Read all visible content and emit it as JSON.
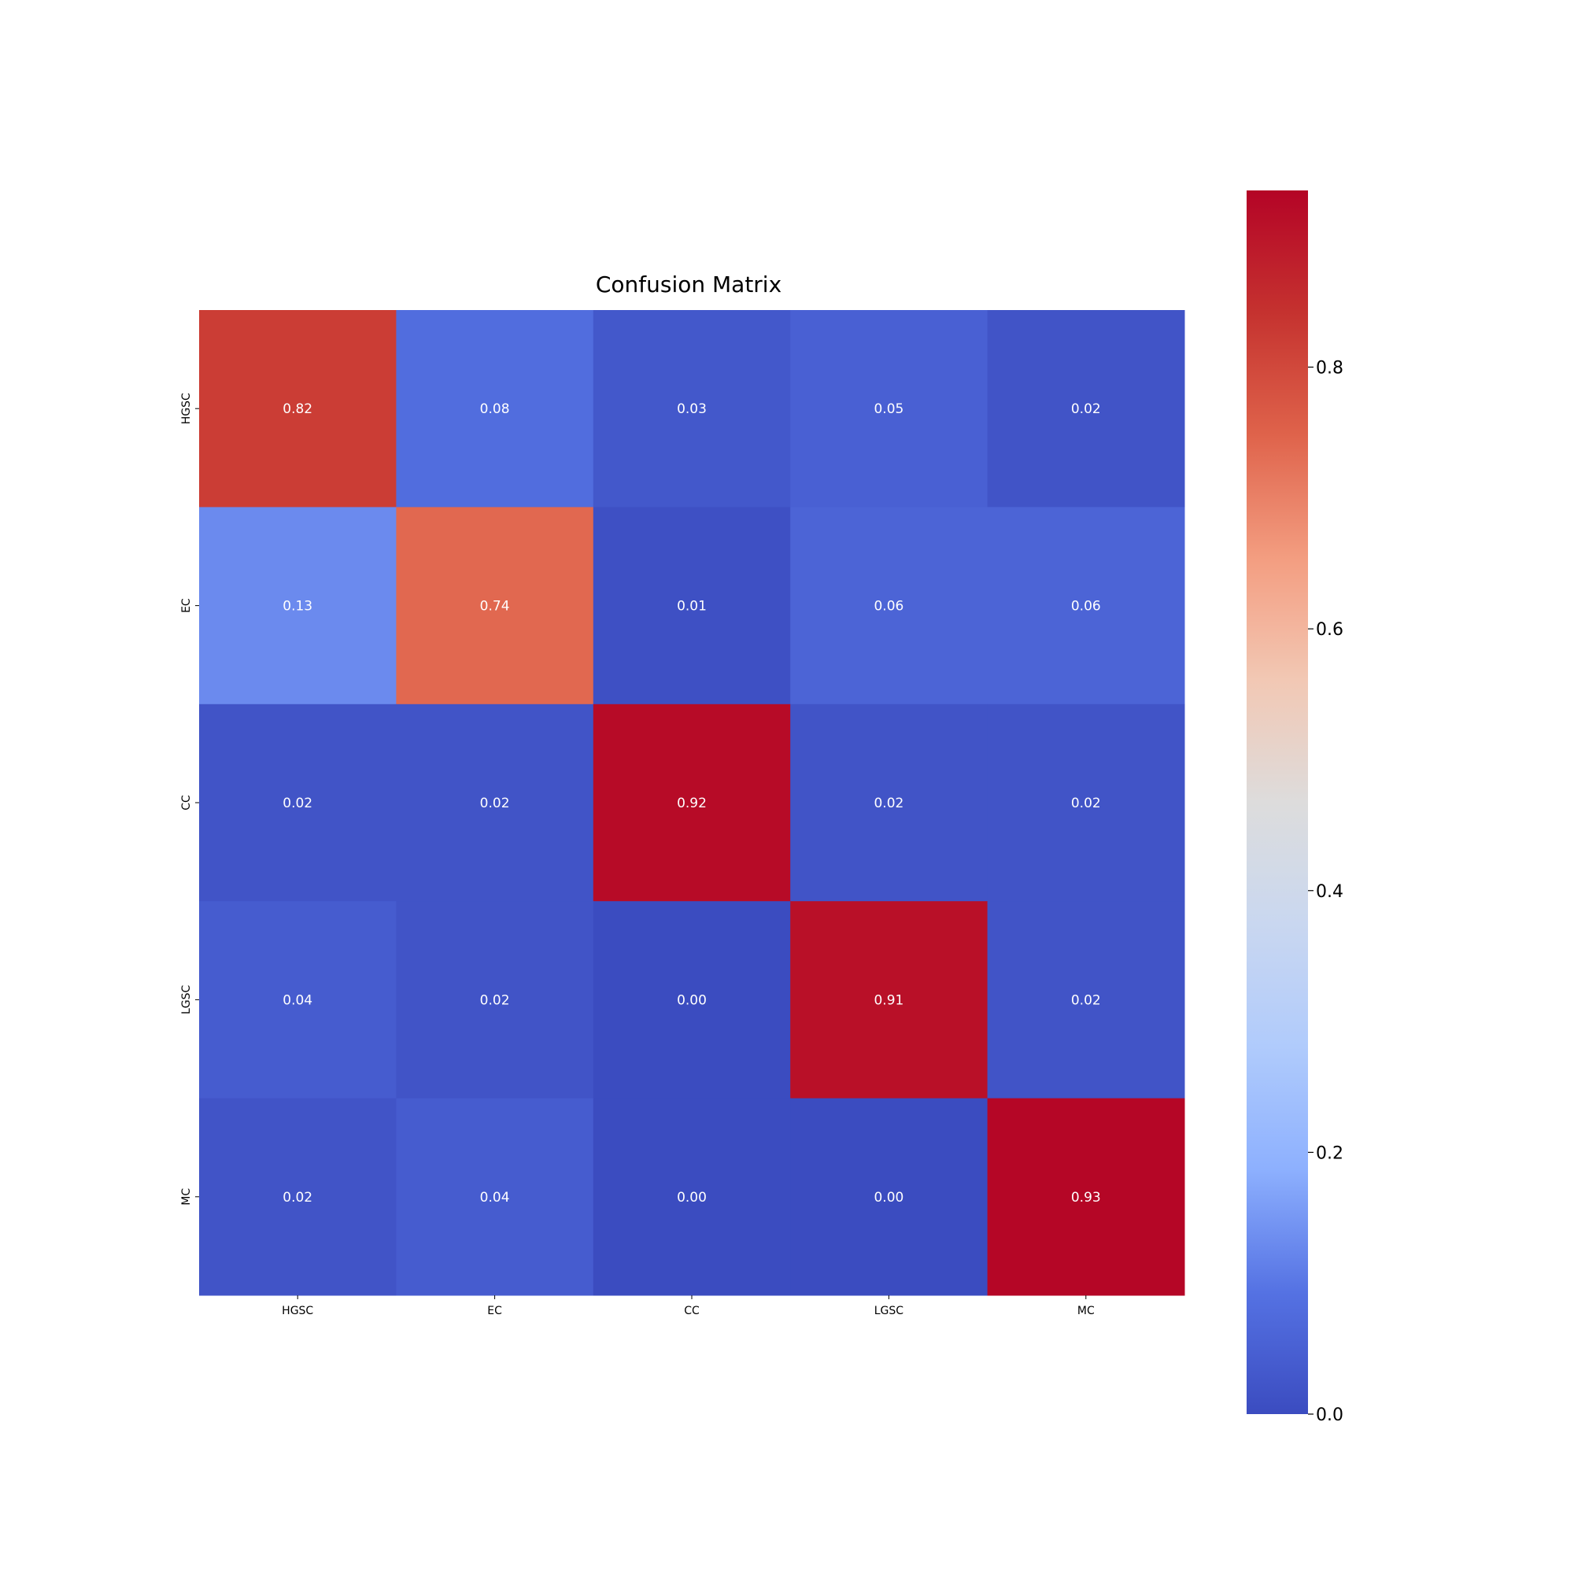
{
  "chart_data": {
    "type": "heatmap",
    "title": "Confusion Matrix",
    "xlabel": "",
    "ylabel": "",
    "x_categories": [
      "HGSC",
      "EC",
      "CC",
      "LGSC",
      "MC"
    ],
    "y_categories": [
      "HGSC",
      "EC",
      "CC",
      "LGSC",
      "MC"
    ],
    "values": [
      [
        0.82,
        0.08,
        0.03,
        0.05,
        0.02
      ],
      [
        0.13,
        0.74,
        0.01,
        0.06,
        0.06
      ],
      [
        0.02,
        0.02,
        0.92,
        0.02,
        0.02
      ],
      [
        0.04,
        0.02,
        0.0,
        0.91,
        0.02
      ],
      [
        0.02,
        0.04,
        0.0,
        0.0,
        0.93
      ]
    ],
    "annotation_format": "0.00",
    "colormap": "coolwarm",
    "colorbar": {
      "range": [
        0,
        0.935
      ],
      "ticks": [
        0.0,
        0.2,
        0.4,
        0.6,
        0.8
      ],
      "tick_labels": [
        "0.0",
        "0.2",
        "0.4",
        "0.6",
        "0.8"
      ]
    },
    "grid": false,
    "colors": {
      "low": "#3b4cc0",
      "mid": "#dddddd",
      "high": "#b40426",
      "annotation_text": "#ffffff"
    }
  }
}
